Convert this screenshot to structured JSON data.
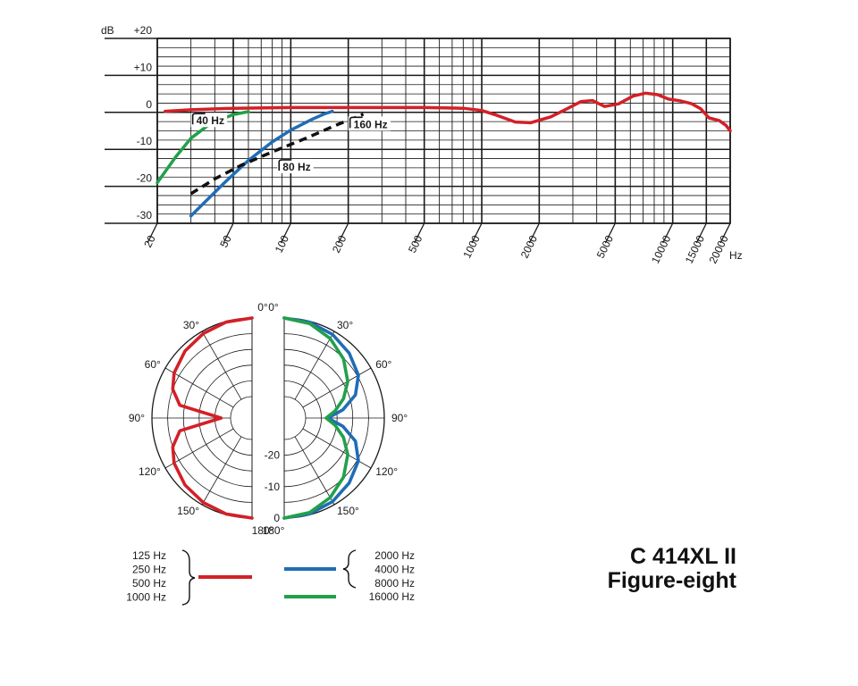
{
  "model": {
    "name": "C 414XL II",
    "pattern": "Figure-eight"
  },
  "colors": {
    "red": "#d32027",
    "blue": "#1f6db6",
    "green": "#22a04a",
    "black": "#111111",
    "grid": "#1a1a1a"
  },
  "chart_data": [
    {
      "type": "line",
      "title": "",
      "xlabel": "Hz",
      "ylabel": "dB",
      "x_scale": "log",
      "xlim": [
        20,
        20000
      ],
      "ylim": [
        -30,
        20
      ],
      "x_tick_labels": [
        "20",
        "50",
        "100",
        "200",
        "500",
        "1000",
        "2000",
        "5000",
        "10000",
        "15000",
        "20000"
      ],
      "x_ticks": [
        20,
        50,
        100,
        200,
        500,
        1000,
        2000,
        5000,
        10000,
        15000,
        20000
      ],
      "y_ticks": [
        20,
        10,
        0,
        -10,
        -20,
        -30
      ],
      "y_tick_labels": [
        "+20",
        "+10",
        "0",
        "-10",
        "-20",
        "-30"
      ],
      "grid": true,
      "series": [
        {
          "color": "red",
          "style": "solid",
          "points": [
            [
              22,
              0.3
            ],
            [
              30,
              0.7
            ],
            [
              50,
              1.1
            ],
            [
              100,
              1.3
            ],
            [
              200,
              1.3
            ],
            [
              500,
              1.3
            ],
            [
              800,
              1.1
            ],
            [
              1000,
              0.5
            ],
            [
              1200,
              -0.8
            ],
            [
              1500,
              -2.6
            ],
            [
              1800,
              -2.8
            ],
            [
              2300,
              -1.2
            ],
            [
              2800,
              1.0
            ],
            [
              3300,
              2.9
            ],
            [
              3800,
              3.2
            ],
            [
              4400,
              1.6
            ],
            [
              5200,
              2.3
            ],
            [
              6200,
              4.4
            ],
            [
              7200,
              5.2
            ],
            [
              8300,
              4.8
            ],
            [
              9500,
              3.6
            ],
            [
              11000,
              3.1
            ],
            [
              12500,
              2.4
            ],
            [
              14000,
              1.0
            ],
            [
              15500,
              -1.5
            ],
            [
              17500,
              -2.2
            ],
            [
              19000,
              -3.5
            ],
            [
              20000,
              -5.0
            ]
          ]
        },
        {
          "color": "green",
          "style": "solid",
          "points": [
            [
              20,
              -19
            ],
            [
              25,
              -12
            ],
            [
              30,
              -7
            ],
            [
              38,
              -3
            ],
            [
              50,
              -0.6
            ],
            [
              60,
              0.2
            ]
          ]
        },
        {
          "color": "blue",
          "style": "solid",
          "points": [
            [
              30,
              -28
            ],
            [
              45,
              -19
            ],
            [
              60,
              -13
            ],
            [
              80,
              -8
            ],
            [
              100,
              -4.8
            ],
            [
              130,
              -1.8
            ],
            [
              150,
              -0.4
            ],
            [
              165,
              0.3
            ]
          ]
        },
        {
          "color": "black",
          "style": "dashed",
          "points": [
            [
              30,
              -22
            ],
            [
              40,
              -18
            ],
            [
              55,
              -14.3
            ],
            [
              80,
              -10.7
            ],
            [
              120,
              -7
            ],
            [
              170,
              -3.6
            ],
            [
              240,
              -0.5
            ]
          ]
        }
      ],
      "annotations": [
        {
          "label": "40 Hz",
          "anchor": [
            30,
            -3
          ]
        },
        {
          "label": "80 Hz",
          "anchor": [
            85,
            -15.5
          ]
        },
        {
          "label": "160 Hz",
          "anchor": [
            200,
            -4
          ]
        }
      ]
    },
    {
      "type": "polar",
      "angle_labels_left": [
        "180°",
        "150°",
        "120°",
        "90°",
        "60°",
        "30°",
        "0°"
      ],
      "angle_labels_right": [
        "180°",
        "150°",
        "120°",
        "90°",
        "60°",
        "30°",
        "0°"
      ],
      "radial_labels": [
        "-20",
        "-10",
        "0"
      ],
      "radial_ticks_db": [
        -20,
        -10,
        0
      ],
      "rings_db": [
        -25,
        -20,
        -15,
        -10,
        -5,
        0
      ],
      "spokes_deg": [
        0,
        30,
        60,
        90,
        120,
        150,
        180
      ],
      "series": [
        {
          "side": "left",
          "color": "red",
          "points": [
            [
              0,
              0
            ],
            [
              15,
              -0.2
            ],
            [
              30,
              -0.8
            ],
            [
              45,
              -1.7
            ],
            [
              60,
              -3.2
            ],
            [
              70,
              -5
            ],
            [
              80,
              -8.5
            ],
            [
              90,
              -22
            ],
            [
              100,
              -8.5
            ],
            [
              110,
              -5
            ],
            [
              120,
              -3.2
            ],
            [
              135,
              -1.7
            ],
            [
              150,
              -0.8
            ],
            [
              165,
              -0.2
            ],
            [
              180,
              0
            ]
          ]
        },
        {
          "side": "right",
          "color": "blue",
          "points": [
            [
              0,
              0
            ],
            [
              15,
              -0.3
            ],
            [
              30,
              -1.1
            ],
            [
              45,
              -2.6
            ],
            [
              60,
              -4.6
            ],
            [
              72,
              -8
            ],
            [
              82,
              -13
            ],
            [
              90,
              -18
            ],
            [
              98,
              -13
            ],
            [
              108,
              -8
            ],
            [
              120,
              -4.6
            ],
            [
              135,
              -2.6
            ],
            [
              150,
              -1.1
            ],
            [
              165,
              -0.3
            ],
            [
              180,
              0
            ]
          ]
        },
        {
          "side": "right",
          "color": "green",
          "points": [
            [
              0,
              0
            ],
            [
              15,
              -0.7
            ],
            [
              30,
              -2.6
            ],
            [
              45,
              -5.2
            ],
            [
              60,
              -8.5
            ],
            [
              72,
              -12
            ],
            [
              82,
              -15.5
            ],
            [
              90,
              -18.5
            ],
            [
              98,
              -15.5
            ],
            [
              108,
              -12
            ],
            [
              120,
              -8.5
            ],
            [
              135,
              -5.2
            ],
            [
              150,
              -2.6
            ],
            [
              165,
              -0.7
            ],
            [
              180,
              0
            ]
          ]
        }
      ],
      "legend": [
        {
          "color": "red",
          "labels": [
            "125 Hz",
            "250 Hz",
            "500 Hz",
            "1000 Hz"
          ]
        },
        {
          "color": "blue",
          "labels": [
            "2000 Hz",
            "4000 Hz",
            "8000 Hz"
          ]
        },
        {
          "color": "green",
          "labels": [
            "16000 Hz"
          ]
        }
      ]
    }
  ]
}
